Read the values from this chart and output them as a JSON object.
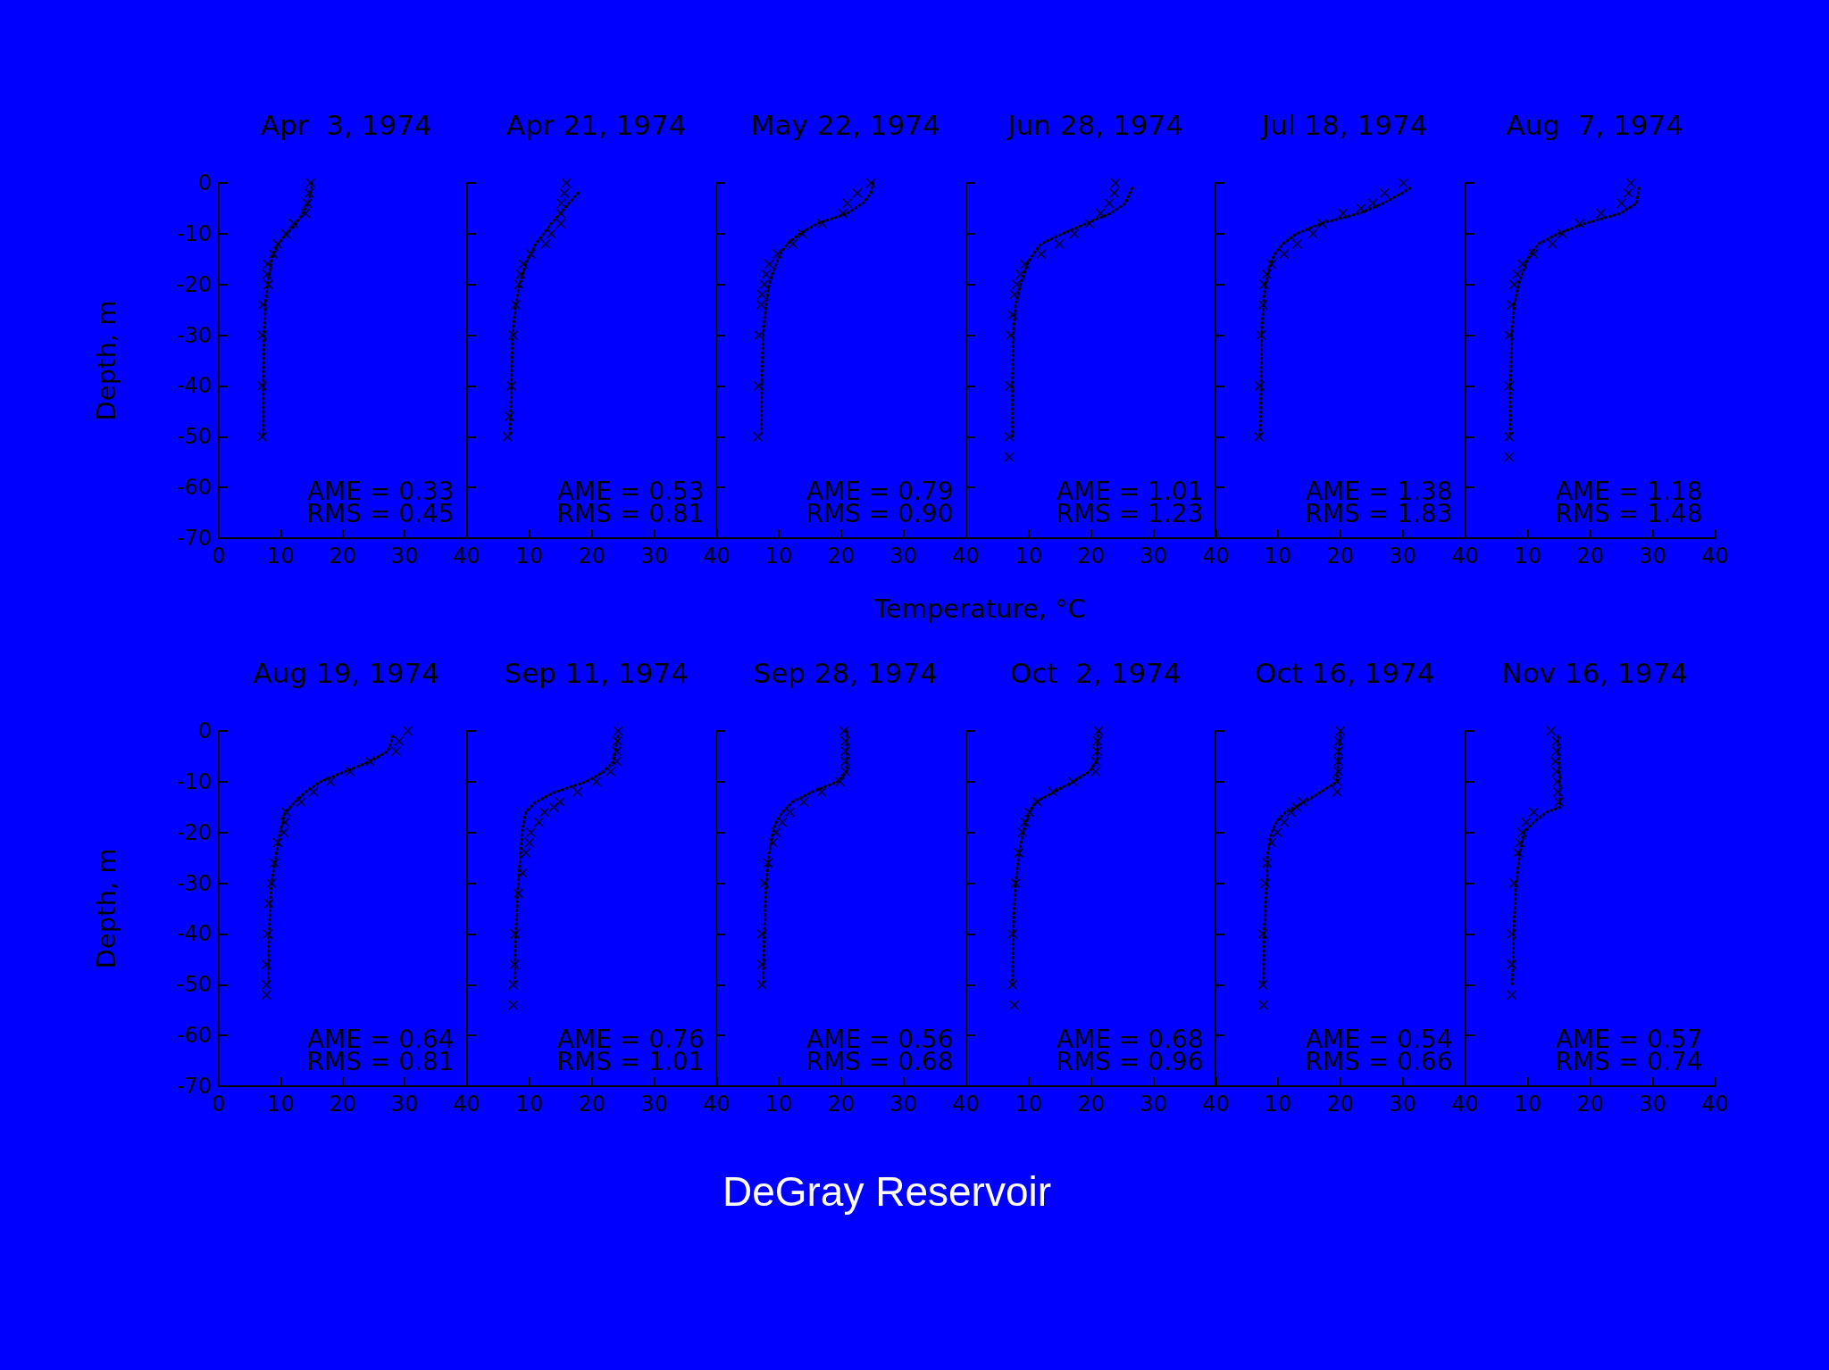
{
  "chart_data": [
    {
      "type": "scatter",
      "title": "Apr  3, 1974",
      "ylabel": "Depth, m",
      "xlim": [
        0,
        40
      ],
      "xticks": [
        0,
        10,
        20,
        30,
        40
      ],
      "ylim": [
        -70,
        0
      ],
      "yticks": [
        -70,
        -60,
        -50,
        -40,
        -30,
        -20,
        -10,
        0
      ],
      "line_style": "dotted",
      "annotations": [
        "AME = 0.33",
        "RMS = 0.45"
      ],
      "series": [
        {
          "marker": "cross",
          "color": "#000000",
          "x": [
            14.8,
            14.6,
            14.3,
            14.0,
            12.1,
            10.8,
            9.5,
            8.8,
            7.9,
            7.8,
            8.0,
            7.1,
            7.0,
            7.0,
            7.0
          ],
          "values": [
            0,
            -2,
            -4,
            -6,
            -8,
            -10,
            -12,
            -14,
            -16,
            -18,
            -20,
            -24,
            -30,
            -40,
            -50
          ]
        },
        {
          "type": "line",
          "marker": "none",
          "color": "#000000",
          "x": [
            15.0,
            14.8,
            14.5,
            13.5,
            12.5,
            11.0,
            9.6,
            8.8,
            8.4,
            7.9,
            7.5,
            7.3,
            7.2,
            7.2
          ],
          "values": [
            0,
            -2,
            -4,
            -6,
            -8,
            -10,
            -12,
            -14,
            -16,
            -20,
            -24,
            -30,
            -40,
            -50
          ]
        }
      ]
    },
    {
      "type": "scatter",
      "title": "Apr 21, 1974",
      "xlim": [
        0,
        40
      ],
      "xticks": [
        10,
        20,
        30,
        40
      ],
      "ylim": [
        -70,
        0
      ],
      "yticks": [
        -70,
        -60,
        -50,
        -40,
        -30,
        -20,
        -10,
        0
      ],
      "tick_labels": "x",
      "line_style": "dotted",
      "annotations": [
        "AME = 0.53",
        "RMS = 0.81"
      ],
      "series": [
        {
          "marker": "cross",
          "color": "#000000",
          "x": [
            15.9,
            15.6,
            15.1,
            15.0,
            15.0,
            13.5,
            12.6,
            10.2,
            9.0,
            8.6,
            8.3,
            7.8,
            7.4,
            7.1,
            6.8,
            6.5
          ],
          "values": [
            0,
            -2,
            -4,
            -6,
            -8,
            -10,
            -12,
            -14,
            -16,
            -18,
            -20,
            -24,
            -30,
            -40,
            -46,
            -50
          ]
        },
        {
          "type": "line",
          "marker": "none",
          "color": "#000000",
          "x": [
            17.8,
            16.3,
            14.9,
            13.5,
            12.3,
            11.0,
            10.2,
            9.4,
            8.4,
            7.8,
            7.3,
            7.1,
            6.9
          ],
          "values": [
            -2,
            -4,
            -6,
            -8,
            -10,
            -12,
            -14,
            -16,
            -20,
            -24,
            -30,
            -40,
            -50
          ]
        }
      ]
    },
    {
      "type": "scatter",
      "title": "May 22, 1974",
      "xlabel": "Temperature, °C",
      "xlim": [
        0,
        40
      ],
      "xticks": [
        10,
        20,
        30,
        40
      ],
      "ylim": [
        -70,
        0
      ],
      "yticks": [
        -70,
        -60,
        -50,
        -40,
        -30,
        -20,
        -10,
        0
      ],
      "tick_labels": "x",
      "line_style": "dotted",
      "annotations": [
        "AME = 0.79",
        "RMS = 0.90"
      ],
      "series": [
        {
          "marker": "cross",
          "color": "#000000",
          "x": [
            24.8,
            22.6,
            21.0,
            20.3,
            17.0,
            13.8,
            12.3,
            9.8,
            8.5,
            8.0,
            7.7,
            7.3,
            7.2,
            6.9,
            6.8,
            6.7
          ],
          "values": [
            0,
            -2,
            -4,
            -6,
            -8,
            -10,
            -12,
            -14,
            -16,
            -18,
            -20,
            -22,
            -24,
            -30,
            -40,
            -50
          ]
        },
        {
          "type": "line",
          "marker": "none",
          "color": "#000000",
          "x": [
            25.1,
            24.8,
            23.5,
            21.0,
            16.2,
            13.4,
            11.4,
            10.2,
            9.6,
            9.0,
            8.5,
            8.0,
            7.5,
            7.3,
            7.2
          ],
          "values": [
            0,
            -2,
            -4,
            -6,
            -8,
            -10,
            -12,
            -14,
            -16,
            -18,
            -20,
            -24,
            -30,
            -40,
            -50
          ]
        }
      ]
    },
    {
      "type": "scatter",
      "title": "Jun 28, 1974",
      "xlim": [
        0,
        40
      ],
      "xticks": [
        10,
        20,
        30,
        40
      ],
      "ylim": [
        -70,
        0
      ],
      "yticks": [
        -70,
        -60,
        -50,
        -40,
        -30,
        -20,
        -10,
        0
      ],
      "tick_labels": "x",
      "line_style": "dotted",
      "annotations": [
        "AME = 1.01",
        "RMS = 1.23"
      ],
      "series": [
        {
          "marker": "cross",
          "color": "#000000",
          "x": [
            23.9,
            23.7,
            22.9,
            21.5,
            19.7,
            17.3,
            14.9,
            12.0,
            9.4,
            8.7,
            8.1,
            7.7,
            7.4,
            7.1,
            7.0,
            6.9,
            6.9
          ],
          "values": [
            0,
            -2,
            -4,
            -6,
            -8,
            -10,
            -12,
            -14,
            -16,
            -18,
            -20,
            -22,
            -26,
            -30,
            -40,
            -50,
            -54
          ]
        },
        {
          "type": "line",
          "marker": "none",
          "color": "#000000",
          "x": [
            26.6,
            25.5,
            23.1,
            19.2,
            15.4,
            12.0,
            10.7,
            9.8,
            8.7,
            7.9,
            7.5,
            7.4,
            7.4
          ],
          "values": [
            -1,
            -4,
            -6,
            -8,
            -10,
            -12,
            -14,
            -16,
            -20,
            -24,
            -30,
            -40,
            -50
          ]
        }
      ]
    },
    {
      "type": "scatter",
      "title": "Jul 18, 1974",
      "xlim": [
        0,
        40
      ],
      "xticks": [
        10,
        20,
        30,
        40
      ],
      "ylim": [
        -70,
        0
      ],
      "yticks": [
        -70,
        -60,
        -50,
        -40,
        -30,
        -20,
        -10,
        0
      ],
      "tick_labels": "x",
      "line_style": "dotted",
      "annotations": [
        "AME = 1.38",
        "RMS = 1.83"
      ],
      "series": [
        {
          "marker": "cross",
          "color": "#000000",
          "x": [
            30.1,
            27.1,
            25.2,
            23.3,
            20.4,
            17.1,
            15.6,
            13.1,
            11.0,
            9.0,
            8.2,
            7.8,
            7.6,
            7.3,
            7.1,
            7.0
          ],
          "values": [
            0,
            -2,
            -4,
            -5,
            -6,
            -8,
            -10,
            -12,
            -14,
            -16,
            -18,
            -20,
            -24,
            -30,
            -40,
            -50
          ]
        },
        {
          "type": "line",
          "marker": "none",
          "color": "#000000",
          "x": [
            31.2,
            29.9,
            26.9,
            23.0,
            16.9,
            13.0,
            10.8,
            9.5,
            8.8,
            8.0,
            7.7,
            7.4,
            7.3,
            7.2
          ],
          "values": [
            -1,
            -2,
            -4,
            -6,
            -8,
            -10,
            -12,
            -14,
            -16,
            -20,
            -24,
            -30,
            -40,
            -50
          ]
        }
      ]
    },
    {
      "type": "scatter",
      "title": "Aug  7, 1974",
      "xlim": [
        0,
        40
      ],
      "xticks": [
        10,
        20,
        30,
        40
      ],
      "ylim": [
        -70,
        0
      ],
      "yticks": [
        -70,
        -60,
        -50,
        -40,
        -30,
        -20,
        -10,
        0
      ],
      "tick_labels": "x",
      "line_style": "dotted",
      "annotations": [
        "AME = 1.18",
        "RMS = 1.48"
      ],
      "series": [
        {
          "marker": "cross",
          "color": "#000000",
          "x": [
            26.5,
            26.1,
            25.0,
            21.7,
            18.3,
            15.5,
            13.9,
            10.9,
            9.1,
            8.3,
            7.8,
            7.4,
            7.0,
            7.0,
            7.0,
            7.0
          ],
          "values": [
            0,
            -2,
            -4,
            -6,
            -8,
            -10,
            -12,
            -14,
            -16,
            -18,
            -20,
            -24,
            -30,
            -40,
            -50,
            -54
          ]
        },
        {
          "type": "line",
          "marker": "none",
          "color": "#000000",
          "x": [
            27.8,
            27.4,
            24.8,
            19.1,
            14.8,
            11.7,
            10.4,
            9.6,
            8.5,
            7.8,
            7.4,
            7.2,
            7.2
          ],
          "values": [
            -1,
            -4,
            -6,
            -8,
            -10,
            -12,
            -14,
            -16,
            -20,
            -24,
            -30,
            -40,
            -50
          ]
        }
      ]
    },
    {
      "type": "scatter",
      "title": "Aug 19, 1974",
      "ylabel": "Depth, m",
      "xlim": [
        0,
        40
      ],
      "xticks": [
        0,
        10,
        20,
        30,
        40
      ],
      "ylim": [
        -70,
        0
      ],
      "yticks": [
        -70,
        -60,
        -50,
        -40,
        -30,
        -20,
        -10,
        0
      ],
      "line_style": "dotted",
      "annotations": [
        "AME = 0.64",
        "RMS = 0.81"
      ],
      "series": [
        {
          "marker": "cross",
          "color": "#000000",
          "x": [
            30.5,
            29.1,
            28.6,
            24.4,
            21.2,
            18.0,
            15.3,
            13.3,
            10.9,
            10.7,
            10.5,
            9.5,
            9.0,
            8.5,
            8.1,
            7.9,
            7.7,
            7.7,
            7.7
          ],
          "values": [
            0,
            -2,
            -4,
            -6,
            -8,
            -10,
            -12,
            -14,
            -16,
            -18,
            -20,
            -22,
            -26,
            -30,
            -34,
            -40,
            -46,
            -50,
            -52
          ]
        },
        {
          "type": "line",
          "marker": "none",
          "color": "#000000",
          "x": [
            28.1,
            27.3,
            24.4,
            20.4,
            16.4,
            14.0,
            12.3,
            10.7,
            9.9,
            9.3,
            8.5,
            8.1,
            8.0
          ],
          "values": [
            -1,
            -4,
            -6,
            -8,
            -10,
            -12,
            -14,
            -16,
            -20,
            -24,
            -30,
            -40,
            -50
          ]
        }
      ]
    },
    {
      "type": "scatter",
      "title": "Sep 11, 1974",
      "xlim": [
        0,
        40
      ],
      "xticks": [
        10,
        20,
        30,
        40
      ],
      "ylim": [
        -70,
        0
      ],
      "yticks": [
        -70,
        -60,
        -50,
        -40,
        -30,
        -20,
        -10,
        0
      ],
      "tick_labels": "x",
      "line_style": "dotted",
      "annotations": [
        "AME = 0.76",
        "RMS = 1.01"
      ],
      "series": [
        {
          "marker": "cross",
          "color": "#000000",
          "x": [
            24.2,
            24.1,
            24.0,
            24.0,
            23.0,
            20.7,
            17.7,
            14.9,
            13.9,
            12.4,
            11.5,
            10.2,
            10.0,
            9.4,
            8.9,
            8.2,
            7.7,
            7.6,
            7.4,
            7.4
          ],
          "values": [
            0,
            -2,
            -4,
            -6,
            -8,
            -10,
            -12,
            -14,
            -15,
            -16,
            -18,
            -20,
            -22,
            -24,
            -28,
            -32,
            -40,
            -46,
            -50,
            -54
          ]
        },
        {
          "type": "line",
          "marker": "none",
          "color": "#000000",
          "x": [
            24.2,
            23.5,
            21.9,
            19.1,
            14.2,
            11.0,
            9.4,
            8.8,
            8.6,
            8.2,
            7.8,
            7.6
          ],
          "values": [
            -1,
            -6,
            -8,
            -10,
            -12,
            -14,
            -16,
            -20,
            -24,
            -30,
            -40,
            -50
          ]
        }
      ]
    },
    {
      "type": "scatter",
      "title": "Sep 28, 1974",
      "xlim": [
        0,
        40
      ],
      "xticks": [
        10,
        20,
        30,
        40
      ],
      "ylim": [
        -70,
        0
      ],
      "yticks": [
        -70,
        -60,
        -50,
        -40,
        -30,
        -20,
        -10,
        0
      ],
      "tick_labels": "x",
      "line_style": "dotted",
      "annotations": [
        "AME = 0.56",
        "RMS = 0.68"
      ],
      "series": [
        {
          "marker": "cross",
          "color": "#000000",
          "x": [
            20.5,
            20.7,
            20.7,
            20.7,
            20.7,
            19.8,
            16.9,
            14.0,
            11.8,
            10.6,
            9.6,
            9.1,
            8.3,
            7.7,
            7.3,
            7.3,
            7.3
          ],
          "values": [
            0,
            -2,
            -4,
            -6,
            -8,
            -10,
            -12,
            -14,
            -16,
            -18,
            -20,
            -22,
            -26,
            -30,
            -40,
            -46,
            -50
          ]
        },
        {
          "type": "line",
          "marker": "none",
          "color": "#000000",
          "x": [
            20.9,
            20.9,
            19.4,
            15.4,
            12.2,
            10.6,
            9.6,
            9.1,
            8.5,
            8.0,
            7.7,
            7.5
          ],
          "values": [
            0,
            -8,
            -10,
            -12,
            -14,
            -16,
            -18,
            -20,
            -24,
            -30,
            -40,
            -50
          ]
        }
      ]
    },
    {
      "type": "scatter",
      "title": "Oct  2, 1974",
      "xlim": [
        0,
        40
      ],
      "xticks": [
        10,
        20,
        30,
        40
      ],
      "ylim": [
        -70,
        0
      ],
      "yticks": [
        -70,
        -60,
        -50,
        -40,
        -30,
        -20,
        -10,
        0
      ],
      "tick_labels": "x",
      "line_style": "dotted",
      "annotations": [
        "AME = 0.68",
        "RMS = 0.96"
      ],
      "series": [
        {
          "marker": "cross",
          "color": "#000000",
          "x": [
            21.2,
            21.0,
            21.0,
            20.8,
            20.7,
            17.1,
            13.9,
            11.4,
            10.1,
            9.4,
            9.0,
            8.4,
            7.9,
            7.4,
            7.4,
            7.7
          ],
          "values": [
            0,
            -2,
            -4,
            -6,
            -8,
            -10,
            -12,
            -14,
            -16,
            -18,
            -20,
            -24,
            -30,
            -40,
            -50,
            -54
          ]
        },
        {
          "type": "line",
          "marker": "none",
          "color": "#000000",
          "x": [
            21.2,
            20.9,
            19.7,
            17.1,
            14.1,
            11.1,
            10.1,
            9.1,
            8.5,
            7.9,
            7.5,
            7.4
          ],
          "values": [
            0,
            -6,
            -8,
            -10,
            -12,
            -14,
            -16,
            -20,
            -24,
            -30,
            -40,
            -50
          ]
        }
      ]
    },
    {
      "type": "scatter",
      "title": "Oct 16, 1974",
      "xlim": [
        0,
        40
      ],
      "xticks": [
        10,
        20,
        30,
        40
      ],
      "ylim": [
        -70,
        0
      ],
      "yticks": [
        -70,
        -60,
        -50,
        -40,
        -30,
        -20,
        -10,
        0
      ],
      "tick_labels": "x",
      "line_style": "dotted",
      "annotations": [
        "AME = 0.54",
        "RMS = 0.66"
      ],
      "series": [
        {
          "marker": "cross",
          "color": "#000000",
          "x": [
            20.0,
            19.8,
            19.7,
            19.7,
            19.7,
            19.5,
            19.5,
            14.0,
            13.0,
            12.1,
            11.0,
            9.9,
            9.0,
            8.3,
            8.0,
            7.6,
            7.6,
            7.7
          ],
          "values": [
            0,
            -2,
            -4,
            -6,
            -8,
            -10,
            -12,
            -14,
            -15,
            -16,
            -18,
            -20,
            -22,
            -26,
            -30,
            -40,
            -50,
            -54
          ]
        },
        {
          "type": "line",
          "marker": "none",
          "color": "#000000",
          "x": [
            20.0,
            19.5,
            16.9,
            14.3,
            11.2,
            9.7,
            9.0,
            8.4,
            8.2,
            7.8,
            7.7
          ],
          "values": [
            0,
            -10,
            -12,
            -14,
            -16,
            -18,
            -20,
            -24,
            -30,
            -40,
            -50
          ]
        }
      ]
    },
    {
      "type": "scatter",
      "title": "Nov 16, 1974",
      "xlim": [
        0,
        40
      ],
      "xticks": [
        10,
        20,
        30,
        40
      ],
      "ylim": [
        -70,
        0
      ],
      "yticks": [
        -70,
        -60,
        -50,
        -40,
        -30,
        -20,
        -10,
        0
      ],
      "tick_labels": "x",
      "line_style": "dotted",
      "annotations": [
        "AME = 0.57",
        "RMS = 0.74"
      ],
      "series": [
        {
          "marker": "cross",
          "color": "#000000",
          "x": [
            13.7,
            14.6,
            14.6,
            14.4,
            14.6,
            14.7,
            14.8,
            15.0,
            10.9,
            9.7,
            9.1,
            8.7,
            8.4,
            7.8,
            7.4,
            7.4,
            7.4
          ],
          "values": [
            0,
            -2,
            -4,
            -6,
            -8,
            -10,
            -12,
            -14,
            -16,
            -18,
            -20,
            -22,
            -24,
            -30,
            -40,
            -46,
            -52
          ]
        },
        {
          "type": "line",
          "marker": "none",
          "color": "#000000",
          "x": [
            14.8,
            15.2,
            13.0,
            10.9,
            9.4,
            8.7,
            8.1,
            7.7,
            7.5
          ],
          "values": [
            -1,
            -15,
            -16,
            -18,
            -20,
            -24,
            -30,
            -40,
            -50
          ]
        }
      ]
    },
    {
      "type": "other",
      "title": "DeGray Reservoir"
    }
  ]
}
